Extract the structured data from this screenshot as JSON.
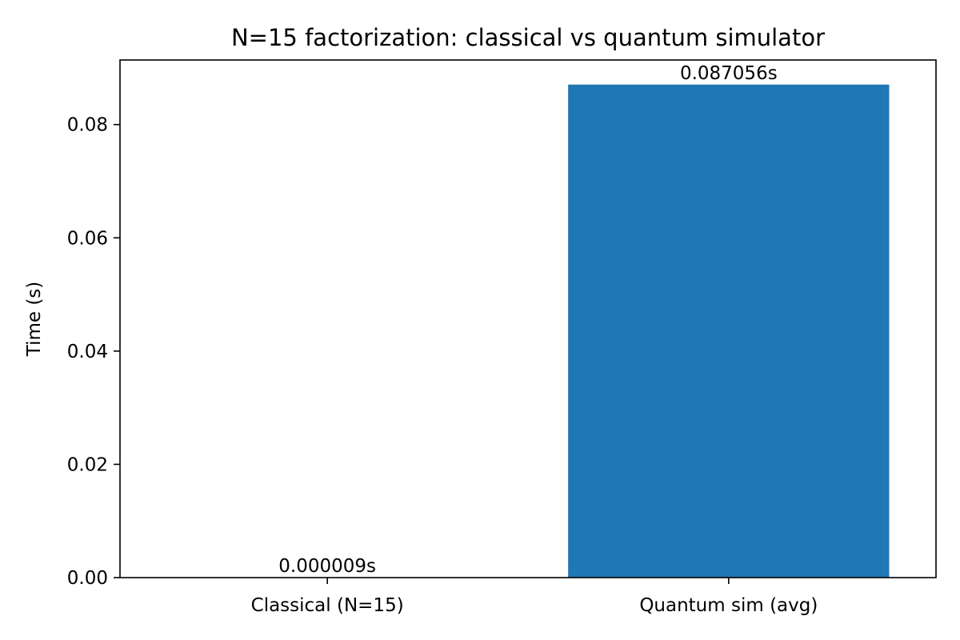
{
  "chart_data": {
    "type": "bar",
    "title": "N=15 factorization: classical vs quantum simulator",
    "xlabel": "",
    "ylabel": "Time (s)",
    "categories": [
      "Classical (N=15)",
      "Quantum sim (avg)"
    ],
    "values": [
      9e-06,
      0.087056
    ],
    "data_labels": [
      "0.000009s",
      "0.087056s"
    ],
    "ylim": [
      0,
      0.0914
    ],
    "yticks": [
      0,
      0.02,
      0.04,
      0.06,
      0.08
    ],
    "ytick_labels": [
      "0.00",
      "0.02",
      "0.04",
      "0.06",
      "0.08"
    ],
    "bar_color": "#1f77b4",
    "grid": false,
    "legend": "none"
  }
}
